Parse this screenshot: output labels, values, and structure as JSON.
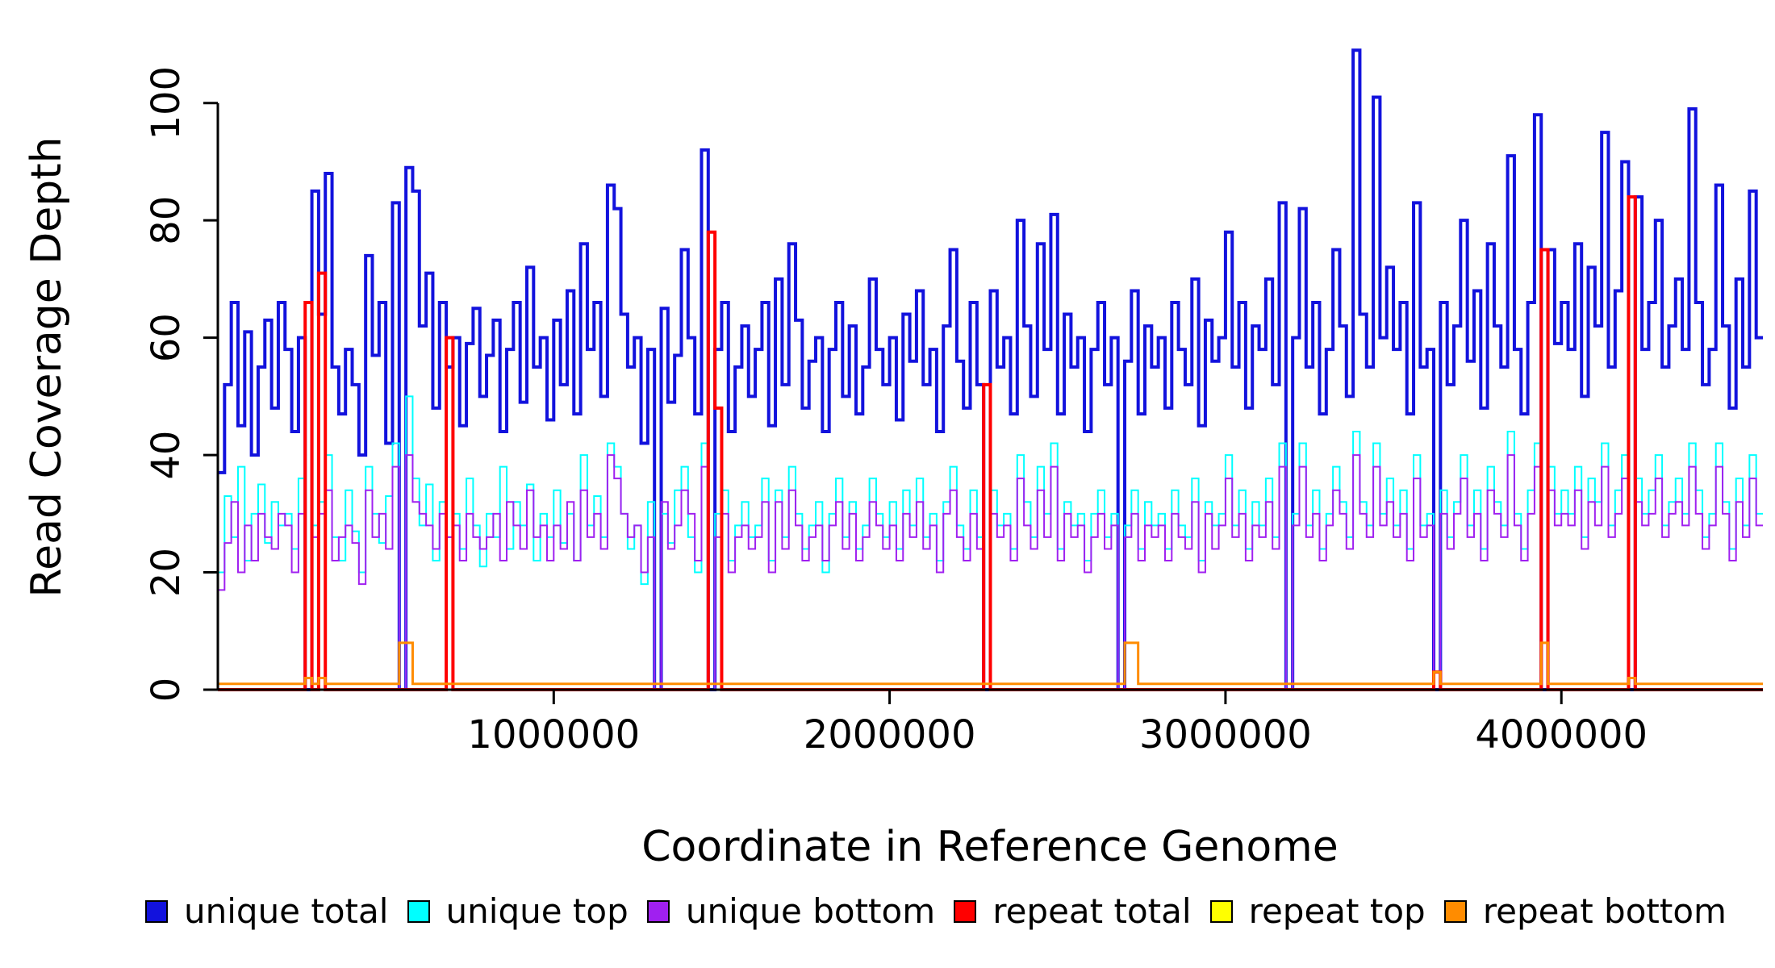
{
  "figure": {
    "background": "#ffffff"
  },
  "chart_data": {
    "type": "line",
    "step": true,
    "title": "",
    "xlabel": "Coordinate in Reference Genome",
    "ylabel": "Read Coverage Depth",
    "xlim": [
      0,
      4600000
    ],
    "ylim": [
      0,
      110
    ],
    "x_ticks": [
      1000000,
      2000000,
      3000000,
      4000000
    ],
    "y_ticks": [
      0,
      20,
      40,
      60,
      80,
      100
    ],
    "grid": false,
    "legend_position": "bottom",
    "x_start": 0,
    "x_step": 20000,
    "n_points": 230,
    "series": [
      {
        "name": "unique total",
        "color": "#1212dd",
        "linewidth": 4,
        "values": [
          37,
          52,
          66,
          45,
          61,
          40,
          55,
          63,
          48,
          66,
          58,
          44,
          60,
          0,
          85,
          64,
          88,
          55,
          47,
          58,
          52,
          40,
          74,
          57,
          66,
          42,
          83,
          0,
          89,
          85,
          62,
          71,
          48,
          66,
          55,
          60,
          45,
          59,
          65,
          50,
          57,
          63,
          44,
          58,
          66,
          49,
          72,
          55,
          60,
          46,
          63,
          52,
          68,
          47,
          76,
          58,
          66,
          50,
          86,
          82,
          64,
          55,
          60,
          42,
          58,
          0,
          65,
          49,
          57,
          75,
          60,
          47,
          92,
          0,
          58,
          66,
          44,
          55,
          62,
          50,
          58,
          66,
          45,
          70,
          52,
          76,
          63,
          48,
          56,
          60,
          44,
          58,
          66,
          50,
          62,
          47,
          55,
          70,
          58,
          52,
          60,
          46,
          64,
          56,
          68,
          52,
          58,
          44,
          62,
          75,
          56,
          48,
          66,
          52,
          0,
          68,
          55,
          60,
          47,
          80,
          62,
          50,
          76,
          58,
          81,
          47,
          64,
          55,
          60,
          44,
          58,
          66,
          52,
          60,
          0,
          56,
          68,
          47,
          62,
          55,
          60,
          48,
          66,
          58,
          52,
          70,
          45,
          63,
          56,
          60,
          78,
          55,
          66,
          48,
          62,
          58,
          70,
          52,
          83,
          0,
          60,
          82,
          55,
          66,
          47,
          58,
          75,
          62,
          50,
          109,
          64,
          55,
          101,
          60,
          72,
          58,
          66,
          47,
          83,
          55,
          58,
          0,
          66,
          52,
          62,
          80,
          56,
          68,
          48,
          76,
          62,
          55,
          91,
          58,
          47,
          66,
          98,
          0,
          75,
          59,
          66,
          58,
          76,
          50,
          72,
          62,
          95,
          55,
          68,
          90,
          0,
          84,
          58,
          66,
          80,
          55,
          62,
          70,
          58,
          99,
          66,
          52,
          58,
          86,
          62,
          48,
          70,
          55,
          85,
          60
        ]
      },
      {
        "name": "unique top",
        "color": "#00ffff",
        "linewidth": 2,
        "values": [
          20,
          33,
          26,
          38,
          22,
          30,
          35,
          25,
          32,
          28,
          30,
          24,
          36,
          0,
          28,
          32,
          40,
          26,
          22,
          34,
          27,
          20,
          38,
          30,
          25,
          33,
          42,
          0,
          50,
          36,
          28,
          35,
          22,
          32,
          26,
          30,
          24,
          36,
          28,
          21,
          30,
          26,
          38,
          24,
          32,
          28,
          35,
          22,
          30,
          26,
          34,
          25,
          30,
          22,
          40,
          28,
          33,
          26,
          42,
          38,
          30,
          24,
          28,
          18,
          32,
          0,
          30,
          25,
          34,
          38,
          26,
          20,
          42,
          0,
          30,
          34,
          22,
          28,
          32,
          26,
          28,
          36,
          22,
          34,
          26,
          38,
          30,
          24,
          28,
          32,
          20,
          30,
          36,
          26,
          32,
          24,
          28,
          36,
          30,
          26,
          32,
          24,
          34,
          28,
          36,
          26,
          30,
          22,
          32,
          38,
          28,
          24,
          34,
          26,
          0,
          34,
          28,
          30,
          24,
          40,
          32,
          26,
          38,
          30,
          42,
          24,
          32,
          28,
          30,
          22,
          30,
          34,
          26,
          30,
          0,
          28,
          34,
          24,
          32,
          28,
          30,
          24,
          34,
          28,
          26,
          36,
          22,
          32,
          28,
          30,
          40,
          28,
          34,
          24,
          32,
          28,
          36,
          26,
          42,
          0,
          30,
          42,
          28,
          34,
          24,
          30,
          38,
          32,
          26,
          44,
          32,
          28,
          42,
          30,
          36,
          28,
          34,
          24,
          40,
          28,
          30,
          0,
          34,
          26,
          32,
          40,
          28,
          34,
          24,
          38,
          32,
          28,
          44,
          30,
          24,
          34,
          42,
          0,
          38,
          30,
          34,
          30,
          38,
          26,
          36,
          32,
          42,
          28,
          34,
          40,
          0,
          36,
          30,
          34,
          40,
          28,
          32,
          36,
          30,
          42,
          34,
          26,
          30,
          42,
          32,
          24,
          36,
          28,
          40,
          30
        ]
      },
      {
        "name": "unique bottom",
        "color": "#a020f0",
        "linewidth": 2,
        "values": [
          17,
          25,
          32,
          20,
          28,
          22,
          30,
          26,
          24,
          30,
          28,
          20,
          30,
          0,
          26,
          30,
          34,
          22,
          26,
          28,
          25,
          18,
          34,
          26,
          30,
          24,
          38,
          0,
          40,
          32,
          30,
          28,
          24,
          30,
          26,
          28,
          22,
          30,
          26,
          24,
          26,
          30,
          22,
          32,
          28,
          24,
          34,
          26,
          28,
          22,
          28,
          24,
          32,
          22,
          34,
          26,
          30,
          24,
          40,
          36,
          30,
          26,
          28,
          20,
          26,
          0,
          32,
          24,
          28,
          34,
          30,
          22,
          38,
          0,
          26,
          30,
          20,
          26,
          28,
          24,
          26,
          32,
          20,
          32,
          24,
          34,
          28,
          22,
          26,
          28,
          22,
          28,
          32,
          24,
          30,
          22,
          26,
          32,
          28,
          24,
          28,
          22,
          30,
          26,
          32,
          24,
          28,
          20,
          30,
          34,
          26,
          22,
          30,
          24,
          0,
          30,
          26,
          28,
          22,
          36,
          28,
          24,
          34,
          26,
          38,
          22,
          30,
          26,
          28,
          20,
          26,
          30,
          24,
          28,
          0,
          26,
          30,
          22,
          28,
          26,
          28,
          22,
          30,
          26,
          24,
          32,
          20,
          30,
          24,
          28,
          36,
          26,
          30,
          22,
          28,
          26,
          32,
          24,
          38,
          0,
          28,
          38,
          26,
          30,
          22,
          28,
          34,
          30,
          24,
          40,
          30,
          26,
          38,
          28,
          32,
          26,
          30,
          22,
          36,
          26,
          28,
          0,
          30,
          24,
          30,
          36,
          26,
          30,
          22,
          34,
          30,
          26,
          40,
          28,
          22,
          30,
          38,
          0,
          34,
          28,
          30,
          28,
          34,
          24,
          32,
          28,
          38,
          26,
          30,
          36,
          0,
          32,
          28,
          30,
          36,
          26,
          30,
          32,
          28,
          38,
          30,
          24,
          28,
          38,
          30,
          22,
          32,
          26,
          36,
          28
        ]
      },
      {
        "name": "repeat total",
        "color": "#ff0000",
        "linewidth": 4,
        "baseline": 0,
        "spikes": {
          "13": 66,
          "15": 71,
          "34": 60,
          "73": 78,
          "74": 48,
          "114": 52,
          "181": 3,
          "197": 75,
          "210": 84
        }
      },
      {
        "name": "repeat top",
        "color": "#ffff00",
        "linewidth": 2,
        "baseline": 0,
        "spikes": {}
      },
      {
        "name": "repeat bottom",
        "color": "#ff8c00",
        "linewidth": 3,
        "baseline": 1,
        "spikes": {
          "13": 2,
          "15": 2,
          "27": 8,
          "28": 8,
          "135": 8,
          "136": 8,
          "181": 3,
          "197": 8,
          "210": 2
        }
      }
    ]
  }
}
